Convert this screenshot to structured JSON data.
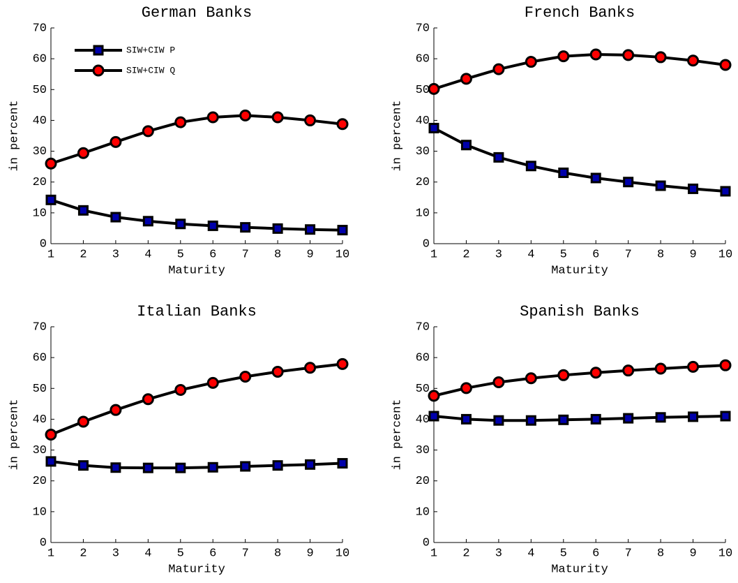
{
  "chart_data": [
    {
      "type": "line",
      "title": "German Banks",
      "x_label": "Maturity",
      "y_label": "in percent",
      "x": [
        1,
        2,
        3,
        4,
        5,
        6,
        7,
        8,
        9,
        10
      ],
      "xlim": [
        1,
        10
      ],
      "xticks": [
        1,
        2,
        3,
        4,
        5,
        6,
        7,
        8,
        9,
        10
      ],
      "ylim": [
        0,
        70
      ],
      "yticks": [
        0,
        10,
        20,
        30,
        40,
        50,
        60,
        70
      ],
      "legend": "upper left",
      "series": [
        {
          "name": "SIW+CIW P",
          "color": "#000000",
          "marker": "square",
          "marker_color": "#0000aa",
          "values": [
            14.2,
            10.8,
            8.6,
            7.3,
            6.4,
            5.8,
            5.3,
            4.9,
            4.6,
            4.4
          ]
        },
        {
          "name": "SIW+CIW Q",
          "color": "#000000",
          "marker": "circle",
          "marker_color": "#ff0000",
          "values": [
            26,
            29.4,
            33,
            36.5,
            39.4,
            41,
            41.6,
            41,
            40,
            38.8
          ]
        }
      ]
    },
    {
      "type": "line",
      "title": "French Banks",
      "x_label": "Maturity",
      "y_label": "in percent",
      "x": [
        1,
        2,
        3,
        4,
        5,
        6,
        7,
        8,
        9,
        10
      ],
      "xlim": [
        1,
        10
      ],
      "xticks": [
        1,
        2,
        3,
        4,
        5,
        6,
        7,
        8,
        9,
        10
      ],
      "ylim": [
        0,
        70
      ],
      "yticks": [
        0,
        10,
        20,
        30,
        40,
        50,
        60,
        70
      ],
      "series": [
        {
          "color": "#000000",
          "marker": "square",
          "marker_color": "#0000aa",
          "values": [
            37.5,
            32,
            28,
            25.2,
            23,
            21.3,
            20,
            18.8,
            17.8,
            17
          ]
        },
        {
          "color": "#000000",
          "marker": "circle",
          "marker_color": "#ff0000",
          "values": [
            50.2,
            53.5,
            56.6,
            59,
            60.8,
            61.4,
            61.2,
            60.5,
            59.4,
            58
          ]
        }
      ]
    },
    {
      "type": "line",
      "title": "Italian Banks",
      "x_label": "Maturity",
      "y_label": "in percent",
      "x": [
        1,
        2,
        3,
        4,
        5,
        6,
        7,
        8,
        9,
        10
      ],
      "xlim": [
        1,
        10
      ],
      "xticks": [
        1,
        2,
        3,
        4,
        5,
        6,
        7,
        8,
        9,
        10
      ],
      "ylim": [
        0,
        70
      ],
      "yticks": [
        0,
        10,
        20,
        30,
        40,
        50,
        60,
        70
      ],
      "series": [
        {
          "color": "#000000",
          "marker": "square",
          "marker_color": "#0000aa",
          "values": [
            26.3,
            25,
            24.3,
            24.2,
            24.2,
            24.4,
            24.7,
            25,
            25.3,
            25.7
          ]
        },
        {
          "color": "#000000",
          "marker": "circle",
          "marker_color": "#ff0000",
          "values": [
            35,
            39.2,
            43,
            46.5,
            49.5,
            51.8,
            53.8,
            55.4,
            56.7,
            57.9
          ]
        }
      ]
    },
    {
      "type": "line",
      "title": "Spanish Banks",
      "x_label": "Maturity",
      "y_label": "in percent",
      "x": [
        1,
        2,
        3,
        4,
        5,
        6,
        7,
        8,
        9,
        10
      ],
      "xlim": [
        1,
        10
      ],
      "xticks": [
        1,
        2,
        3,
        4,
        5,
        6,
        7,
        8,
        9,
        10
      ],
      "ylim": [
        0,
        70
      ],
      "yticks": [
        0,
        10,
        20,
        30,
        40,
        50,
        60,
        70
      ],
      "series": [
        {
          "color": "#000000",
          "marker": "square",
          "marker_color": "#0000aa",
          "values": [
            41,
            40,
            39.6,
            39.6,
            39.8,
            40,
            40.3,
            40.6,
            40.8,
            41
          ]
        },
        {
          "color": "#000000",
          "marker": "circle",
          "marker_color": "#ff0000",
          "values": [
            47.6,
            50.1,
            52,
            53.3,
            54.3,
            55.1,
            55.8,
            56.4,
            57,
            57.5
          ]
        }
      ]
    }
  ]
}
